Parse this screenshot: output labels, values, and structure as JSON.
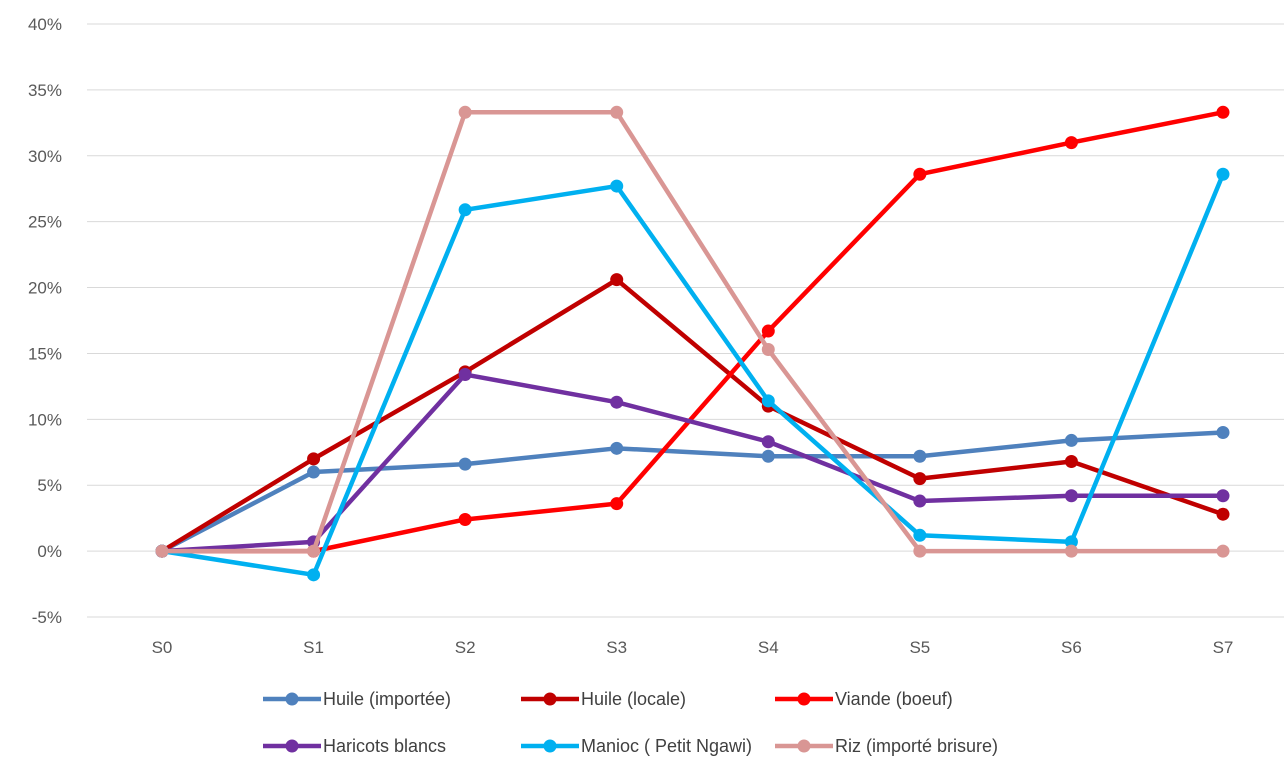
{
  "chart_data": {
    "type": "line",
    "title": "",
    "xlabel": "",
    "ylabel": "",
    "categories": [
      "S0",
      "S1",
      "S2",
      "S3",
      "S4",
      "S5",
      "S6",
      "S7"
    ],
    "yticks": [
      "-5%",
      "0%",
      "5%",
      "10%",
      "15%",
      "20%",
      "25%",
      "30%",
      "35%",
      "40%"
    ],
    "ylim": [
      -5,
      40
    ],
    "y_unit": "%",
    "grid": "horizontal",
    "legend_position": "bottom",
    "series": [
      {
        "name": "Huile (importée)",
        "color": "#4F81BD",
        "values": [
          0,
          6.0,
          6.6,
          7.8,
          7.2,
          7.2,
          8.4,
          9.0
        ]
      },
      {
        "name": "Huile (locale)",
        "color": "#C00000",
        "values": [
          0,
          7.0,
          13.6,
          20.6,
          11.0,
          5.5,
          6.8,
          2.8
        ]
      },
      {
        "name": "Viande (boeuf)",
        "color": "#FF0000",
        "values": [
          0,
          0,
          2.4,
          3.6,
          16.7,
          28.6,
          31.0,
          33.3
        ]
      },
      {
        "name": "Haricots blancs",
        "color": "#7030A0",
        "values": [
          0,
          0.7,
          13.4,
          11.3,
          8.3,
          3.8,
          4.2,
          4.2
        ]
      },
      {
        "name": "Manioc ( Petit Ngawi)",
        "color": "#00B0F0",
        "values": [
          0,
          -1.8,
          25.9,
          27.7,
          11.4,
          1.2,
          0.7,
          28.6
        ]
      },
      {
        "name": "Riz (importé brisure)",
        "color": "#D99694",
        "values": [
          0,
          0,
          33.3,
          33.3,
          15.3,
          0,
          0,
          0
        ]
      }
    ]
  }
}
